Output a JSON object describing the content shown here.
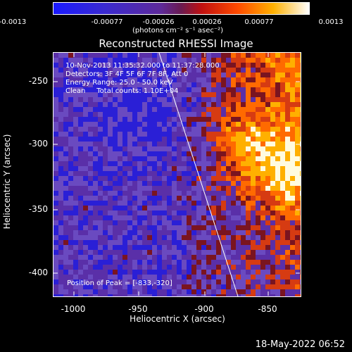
{
  "colorbar": {
    "ticks": [
      "-0.0013",
      "-0.00077",
      "-0.00026",
      "0.00026",
      "0.00077",
      "0.0013"
    ],
    "units": "(photons cm⁻² s⁻¹ asec⁻²)"
  },
  "title": "Reconstructed RHESSI Image",
  "info": {
    "time": "10-Nov-2013 11:35:32.000 to 11:37:28.000",
    "detectors": "Detectors: 3F 4F 5F 6F 7F 8F, Att 0",
    "energy": "Energy Range: 25.0 - 50.0 keV",
    "clean": "Clean     Total counts: 1.10E+04"
  },
  "peak": "Position of Peak = [-833,-320]",
  "axes": {
    "xlabel": "Heliocentric X (arcsec)",
    "ylabel": "Heliocentric Y (arcsec)",
    "xticks": [
      "-1000",
      "-950",
      "-900",
      "-850"
    ],
    "yticks": [
      "-250",
      "-300",
      "-350",
      "-400"
    ]
  },
  "datestamp": "18-May-2022 06:52",
  "chart_data": {
    "type": "heatmap",
    "title": "Reconstructed RHESSI Image",
    "xlabel": "Heliocentric X (arcsec)",
    "ylabel": "Heliocentric Y (arcsec)",
    "xlim": [
      -1018,
      -826
    ],
    "ylim": [
      -419,
      -231
    ],
    "color_range": [
      -0.0013,
      0.0013
    ],
    "peak_position": [
      -833,
      -320
    ],
    "colors": {
      "negative": "#2a1fd6",
      "low": "#5a2fa8",
      "mid": "#d63b12",
      "high": "#ffb000",
      "peak": "#fffbe0"
    }
  }
}
